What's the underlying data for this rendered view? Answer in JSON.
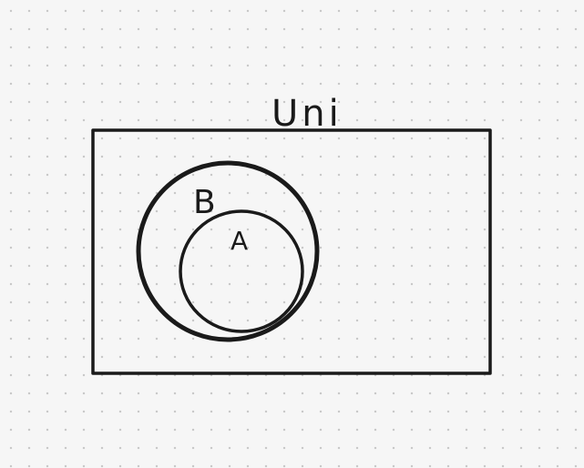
{
  "diagram": {
    "universe_label": "Uni",
    "outer_set_label": "B",
    "inner_set_label": "A",
    "colors": {
      "ink": "#1a1a1a",
      "background": "#f6f6f6",
      "grid_dot": "#c9c9c9"
    }
  }
}
